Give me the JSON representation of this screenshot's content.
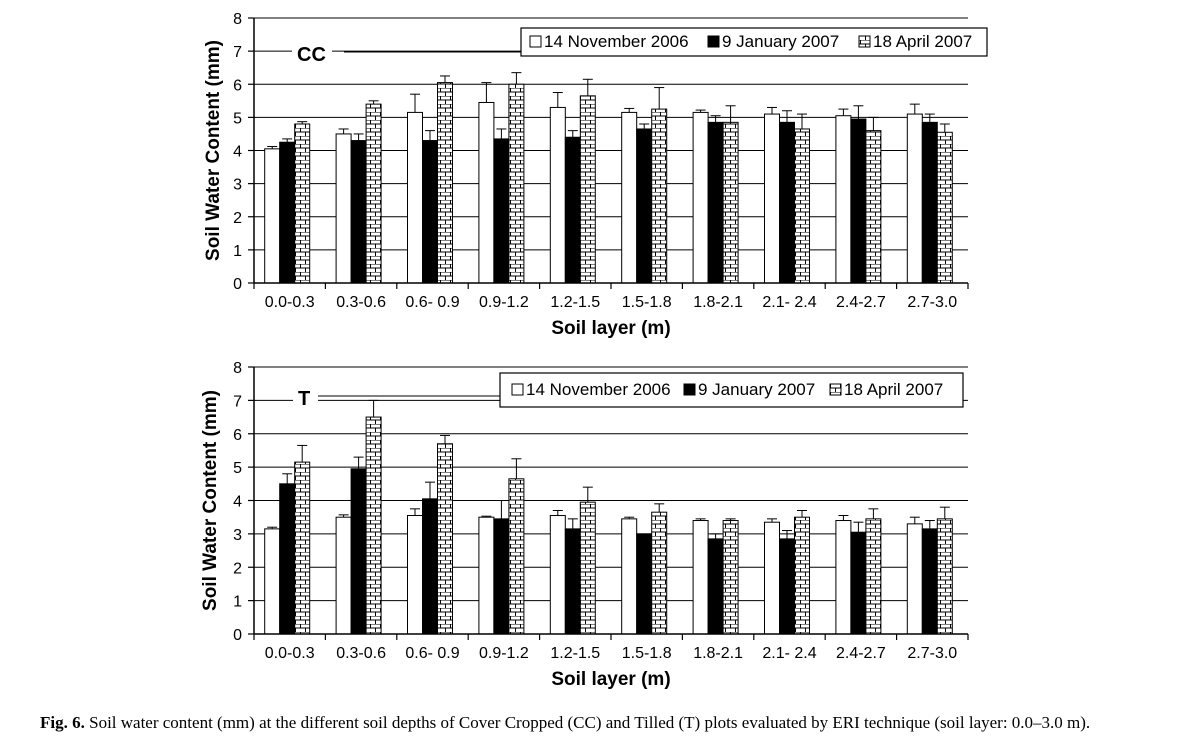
{
  "caption": {
    "label": "Fig. 6.",
    "text": "Soil water content (mm) at the different soil depths of Cover Cropped (CC) and Tilled (T) plots evaluated by ERI technique (soil layer: 0.0–3.0 m)."
  },
  "chart_data": [
    {
      "type": "bar",
      "panel_label": "CC",
      "xlabel": "Soil layer (m)",
      "ylabel": "Soil Water Content (mm)",
      "ylim": [
        0,
        8
      ],
      "yticks": [
        0,
        1,
        2,
        3,
        4,
        5,
        6,
        7,
        8
      ],
      "grid": true,
      "legend_position": "top-right",
      "categories": [
        "0.0-0.3",
        "0.3-0.6",
        "0.6- 0.9",
        "0.9-1.2",
        "1.2-1.5",
        "1.5-1.8",
        "1.8-2.1",
        "2.1- 2.4",
        "2.4-2.7",
        "2.7-3.0"
      ],
      "legend_labels": [
        "14 November 2006",
        "9 January 2007",
        "18 April 2007"
      ],
      "series": [
        {
          "name": "14 November 2006",
          "fill": "white",
          "values": [
            4.05,
            4.5,
            5.15,
            5.45,
            5.3,
            5.15,
            5.15,
            5.1,
            5.05,
            5.1
          ],
          "errors": [
            0.07,
            0.15,
            0.55,
            0.6,
            0.45,
            0.12,
            0.07,
            0.2,
            0.2,
            0.3
          ]
        },
        {
          "name": "9 January 2007",
          "fill": "black",
          "values": [
            4.25,
            4.3,
            4.3,
            4.35,
            4.4,
            4.65,
            4.85,
            4.85,
            4.95,
            4.85
          ],
          "errors": [
            0.1,
            0.2,
            0.3,
            0.3,
            0.2,
            0.15,
            0.2,
            0.35,
            0.4,
            0.25
          ]
        },
        {
          "name": "18 April 2007",
          "fill": "brick",
          "values": [
            4.8,
            5.4,
            6.05,
            6.0,
            5.65,
            5.25,
            4.85,
            4.65,
            4.6,
            4.55
          ],
          "errors": [
            0.07,
            0.1,
            0.2,
            0.35,
            0.5,
            0.65,
            0.5,
            0.45,
            0.4,
            0.25
          ]
        }
      ]
    },
    {
      "type": "bar",
      "panel_label": "T",
      "xlabel": "Soil layer (m)",
      "ylabel": "Soil Water Content (mm)",
      "ylim": [
        0,
        8
      ],
      "yticks": [
        0,
        1,
        2,
        3,
        4,
        5,
        6,
        7,
        8
      ],
      "grid": true,
      "legend_position": "top-right",
      "categories": [
        "0.0-0.3",
        "0.3-0.6",
        "0.6- 0.9",
        "0.9-1.2",
        "1.2-1.5",
        "1.5-1.8",
        "1.8-2.1",
        "2.1- 2.4",
        "2.4-2.7",
        "2.7-3.0"
      ],
      "legend_labels": [
        "14 November 2006",
        "9 January 2007",
        "18 April 2007"
      ],
      "series": [
        {
          "name": "14 November 2006",
          "fill": "white",
          "values": [
            3.15,
            3.5,
            3.55,
            3.5,
            3.55,
            3.45,
            3.4,
            3.35,
            3.4,
            3.3
          ],
          "errors": [
            0.05,
            0.07,
            0.2,
            0.03,
            0.15,
            0.05,
            0.05,
            0.1,
            0.15,
            0.2
          ]
        },
        {
          "name": "9 January 2007",
          "fill": "black",
          "values": [
            4.5,
            4.95,
            4.05,
            3.45,
            3.15,
            3.0,
            2.85,
            2.85,
            3.05,
            3.15
          ],
          "errors": [
            0.3,
            0.35,
            0.5,
            0.55,
            0.3,
            0.0,
            0.15,
            0.25,
            0.3,
            0.25
          ]
        },
        {
          "name": "18 April 2007",
          "fill": "brick",
          "values": [
            5.15,
            6.5,
            5.7,
            4.65,
            3.95,
            3.65,
            3.4,
            3.5,
            3.45,
            3.45
          ],
          "errors": [
            0.5,
            0.5,
            0.25,
            0.6,
            0.45,
            0.25,
            0.05,
            0.2,
            0.3,
            0.35
          ]
        }
      ]
    }
  ]
}
